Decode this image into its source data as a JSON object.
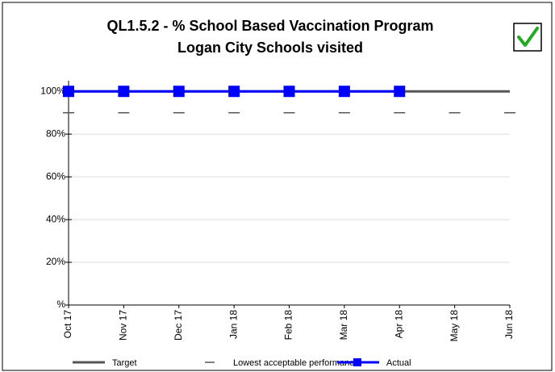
{
  "chart_data": {
    "type": "line",
    "title": [
      "QL1.5.2 - % School Based Vaccination Program",
      "Logan City Schools visited"
    ],
    "categories": [
      "Oct 17",
      "Nov 17",
      "Dec 17",
      "Jan 18",
      "Feb 18",
      "Mar 18",
      "Apr 18",
      "May 18",
      "Jun 18"
    ],
    "series": [
      {
        "name": "Target",
        "color": "#555555",
        "style": "line",
        "values": [
          100,
          100,
          100,
          100,
          100,
          100,
          100,
          100,
          100
        ]
      },
      {
        "name": "Lowest acceptable performance",
        "color": "#555555",
        "style": "dash",
        "values": [
          90,
          90,
          90,
          90,
          90,
          90,
          90,
          90,
          90
        ]
      },
      {
        "name": "Actual",
        "color": "#0000ff",
        "style": "line-marker",
        "values": [
          100,
          100,
          100,
          100,
          100,
          100,
          100,
          null,
          null
        ]
      }
    ],
    "ylim": [
      0,
      105
    ],
    "yticks": [
      {
        "value": 0,
        "label": "%"
      },
      {
        "value": 20,
        "label": "20%"
      },
      {
        "value": 40,
        "label": "40%"
      },
      {
        "value": 60,
        "label": "60%"
      },
      {
        "value": 80,
        "label": "80%"
      },
      {
        "value": 100,
        "label": "100%"
      }
    ],
    "grid": true
  }
}
